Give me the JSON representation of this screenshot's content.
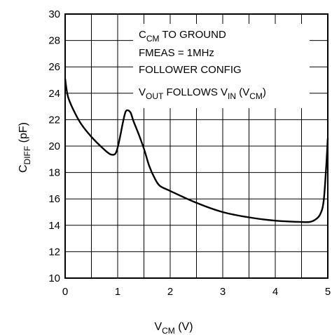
{
  "chart_data": {
    "type": "line",
    "xlim": [
      0,
      5
    ],
    "ylim": [
      10,
      30
    ],
    "grid": true,
    "x_ticks": [
      0,
      0.5,
      1,
      1.5,
      2,
      2.5,
      3,
      3.5,
      4,
      4.5,
      5
    ],
    "x_tick_labels": [
      "0",
      "",
      "1",
      "",
      "2",
      "",
      "3",
      "",
      "4",
      "",
      "5"
    ],
    "y_ticks": [
      10,
      12,
      14,
      16,
      18,
      20,
      22,
      24,
      26,
      28,
      30
    ],
    "y_tick_labels": [
      "10",
      "12",
      "14",
      "16",
      "18",
      "20",
      "22",
      "24",
      "26",
      "28",
      "30"
    ],
    "xlabel": {
      "main": "V",
      "sub": "CM",
      "unit": " (V)"
    },
    "ylabel": {
      "main": "C",
      "sub": "DIFF",
      "unit": " (pF)"
    },
    "annotations": {
      "line1": {
        "main": "C",
        "sub": "CM",
        "rest": " TO GROUND"
      },
      "line2": "FMEAS = 1MHz",
      "line3": "FOLLOWER CONFIG",
      "line4": {
        "a": "V",
        "a_sub": "OUT",
        "b": " FOLLOWS V",
        "b_sub": "IN",
        "c": " (V",
        "c_sub": "CM",
        "d": ")"
      }
    },
    "series": [
      {
        "x": [
          0,
          0.05,
          0.15,
          0.3,
          0.5,
          0.7,
          0.85,
          0.95,
          1.0,
          1.05,
          1.1,
          1.15,
          1.2,
          1.25,
          1.3,
          1.4,
          1.5,
          1.6,
          1.7,
          1.8,
          2.0,
          2.5,
          3.0,
          3.5,
          4.0,
          4.5,
          4.65,
          4.75,
          4.85,
          4.92,
          4.97,
          5.0
        ],
        "y": [
          25.1,
          23.8,
          22.8,
          21.7,
          20.7,
          19.9,
          19.4,
          19.4,
          19.9,
          20.8,
          21.8,
          22.6,
          22.7,
          22.5,
          21.9,
          20.9,
          19.8,
          18.5,
          17.6,
          17.0,
          16.6,
          15.7,
          15.0,
          14.6,
          14.35,
          14.25,
          14.25,
          14.4,
          14.8,
          15.8,
          18.5,
          20.6
        ]
      }
    ]
  }
}
